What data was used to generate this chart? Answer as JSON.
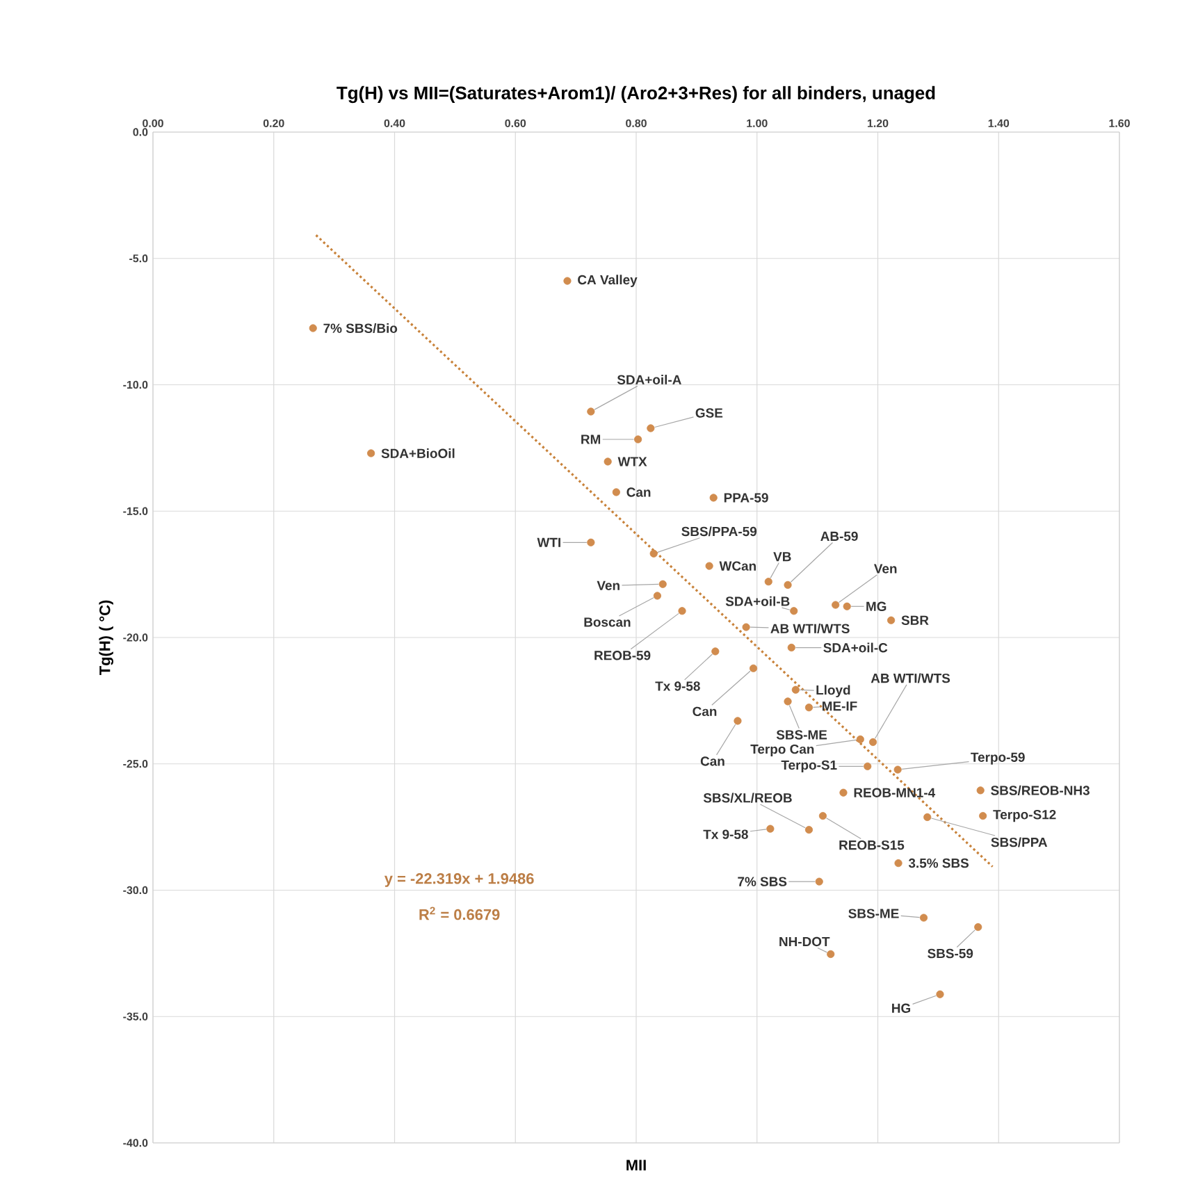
{
  "chart_data": {
    "type": "scatter",
    "title": "Tg(H) vs MII=(Saturates+Arom1)/  (Aro2+3+Res) for all binders, unaged",
    "xlabel": "MII",
    "ylabel": "Tg(H) ( °C)",
    "xlim": [
      0,
      1.6
    ],
    "xticks": [
      {
        "value": 0,
        "label": "0.00"
      },
      {
        "value": 0.2,
        "label": "0.20"
      },
      {
        "value": 0.4,
        "label": "0.40"
      },
      {
        "value": 0.6,
        "label": "0.60"
      },
      {
        "value": 0.8,
        "label": "0.80"
      },
      {
        "value": 1.0,
        "label": "1.00"
      },
      {
        "value": 1.2,
        "label": "1.20"
      },
      {
        "value": 1.4,
        "label": "1.40"
      },
      {
        "value": 1.6,
        "label": "1.60"
      }
    ],
    "ylim": [
      -40,
      0
    ],
    "yticks": [
      {
        "value": 0,
        "label": "0.0"
      },
      {
        "value": -5,
        "label": "-5.0"
      },
      {
        "value": -10,
        "label": "-10.0"
      },
      {
        "value": -15,
        "label": "-15.0"
      },
      {
        "value": -20,
        "label": "-20.0"
      },
      {
        "value": -25,
        "label": "-25.0"
      },
      {
        "value": -30,
        "label": "-30.0"
      },
      {
        "value": -35,
        "label": "-35.0"
      },
      {
        "value": -40,
        "label": "-40.0"
      }
    ],
    "grid": true,
    "series": [
      {
        "type": "scatter",
        "color": "#d18c4e",
        "marker": "circle",
        "x": [
          0.686,
          0.265,
          0.725,
          0.824,
          0.803,
          0.753,
          0.361,
          0.767,
          0.928,
          0.725,
          0.829,
          0.921,
          1.019,
          1.051,
          0.844,
          0.835,
          0.876,
          1.061,
          1.13,
          1.149,
          1.222,
          0.982,
          1.057,
          0.931,
          0.994,
          1.064,
          1.051,
          1.086,
          0.968,
          1.192,
          1.171,
          1.183,
          1.233,
          1.143,
          1.37,
          1.374,
          1.282,
          1.086,
          1.109,
          1.022,
          1.234,
          1.103,
          1.276,
          1.366,
          1.122,
          1.303
        ],
        "values": [
          -5.89,
          -7.76,
          -11.06,
          -11.72,
          -12.16,
          -13.04,
          -12.71,
          -14.25,
          -14.47,
          -16.24,
          -16.68,
          -17.17,
          -17.79,
          -17.92,
          -17.89,
          -18.35,
          -18.95,
          -18.95,
          -18.71,
          -18.77,
          -19.32,
          -19.59,
          -20.4,
          -20.55,
          -21.22,
          -22.07,
          -22.53,
          -22.77,
          -23.3,
          -24.14,
          -24.03,
          -25.1,
          -25.23,
          -26.14,
          -26.05,
          -27.06,
          -27.11,
          -27.61,
          -27.06,
          -27.57,
          -28.93,
          -29.66,
          -31.09,
          -31.46,
          -32.53,
          -34.12
        ]
      },
      {
        "type": "line",
        "color": "#c8823a",
        "marker": "none",
        "line_style": "dotted",
        "x": [
          0.27,
          1.39
        ],
        "values": [
          -4.08,
          -29.07
        ]
      }
    ],
    "annotations": [
      {
        "text": "CA Valley",
        "x": 0.686,
        "y": -5.89
      },
      {
        "text": "7% SBS/Bio",
        "x": 0.265,
        "y": -7.76
      },
      {
        "text": "SDA+oil-A",
        "x": 0.725,
        "y": -11.06
      },
      {
        "text": "GSE",
        "x": 0.824,
        "y": -11.72
      },
      {
        "text": "RM",
        "x": 0.803,
        "y": -12.16
      },
      {
        "text": "WTX",
        "x": 0.753,
        "y": -13.04
      },
      {
        "text": "SDA+BioOil",
        "x": 0.361,
        "y": -12.71
      },
      {
        "text": "Can",
        "x": 0.767,
        "y": -14.25
      },
      {
        "text": "PPA-59",
        "x": 0.928,
        "y": -14.47
      },
      {
        "text": "WTI",
        "x": 0.725,
        "y": -16.24
      },
      {
        "text": "SBS/PPA-59",
        "x": 0.829,
        "y": -16.68
      },
      {
        "text": "WCan",
        "x": 0.921,
        "y": -17.17
      },
      {
        "text": "VB",
        "x": 1.019,
        "y": -17.79
      },
      {
        "text": "AB-59",
        "x": 1.051,
        "y": -17.92
      },
      {
        "text": "Ven",
        "x": 0.844,
        "y": -17.89
      },
      {
        "text": "Boscan",
        "x": 0.835,
        "y": -18.35
      },
      {
        "text": "REOB-59",
        "x": 0.876,
        "y": -18.95
      },
      {
        "text": "SDA+oil-B",
        "x": 1.061,
        "y": -18.95
      },
      {
        "text": "Ven",
        "x": 1.13,
        "y": -18.71
      },
      {
        "text": "MG",
        "x": 1.149,
        "y": -18.77
      },
      {
        "text": "SBR",
        "x": 1.222,
        "y": -19.32
      },
      {
        "text": "AB WTI/WTS",
        "x": 0.982,
        "y": -19.59
      },
      {
        "text": "SDA+oil-C",
        "x": 1.057,
        "y": -20.4
      },
      {
        "text": "Tx 9-58",
        "x": 0.931,
        "y": -20.55
      },
      {
        "text": "Can",
        "x": 0.994,
        "y": -21.22
      },
      {
        "text": "Lloyd",
        "x": 1.064,
        "y": -22.07
      },
      {
        "text": "SBS-ME",
        "x": 1.051,
        "y": -22.53
      },
      {
        "text": "ME-IF",
        "x": 1.086,
        "y": -22.77
      },
      {
        "text": "Can",
        "x": 0.968,
        "y": -23.3
      },
      {
        "text": "AB WTI/WTS",
        "x": 1.192,
        "y": -24.14
      },
      {
        "text": "Terpo Can",
        "x": 1.171,
        "y": -24.03
      },
      {
        "text": "Terpo-S1",
        "x": 1.183,
        "y": -25.1
      },
      {
        "text": "Terpo-59",
        "x": 1.233,
        "y": -25.23
      },
      {
        "text": "REOB-MN1-4",
        "x": 1.143,
        "y": -26.14
      },
      {
        "text": "SBS/REOB-NH3",
        "x": 1.37,
        "y": -26.05
      },
      {
        "text": "Terpo-S12",
        "x": 1.374,
        "y": -27.06
      },
      {
        "text": "SBS/PPA",
        "x": 1.282,
        "y": -27.11
      },
      {
        "text": "SBS/XL/REOB",
        "x": 1.086,
        "y": -27.61
      },
      {
        "text": "REOB-S15",
        "x": 1.109,
        "y": -27.06
      },
      {
        "text": "Tx 9-58",
        "x": 1.022,
        "y": -27.57
      },
      {
        "text": "3.5% SBS",
        "x": 1.234,
        "y": -28.93
      },
      {
        "text": "7% SBS",
        "x": 1.103,
        "y": -29.66
      },
      {
        "text": "SBS-ME",
        "x": 1.276,
        "y": -31.09
      },
      {
        "text": "SBS-59",
        "x": 1.366,
        "y": -31.46
      },
      {
        "text": "NH-DOT",
        "x": 1.122,
        "y": -32.53
      },
      {
        "text": "HG",
        "x": 1.303,
        "y": -34.12
      },
      "y = -22.319x + 1.9486",
      "R$^{2}$ = 0.6679"
    ]
  }
}
